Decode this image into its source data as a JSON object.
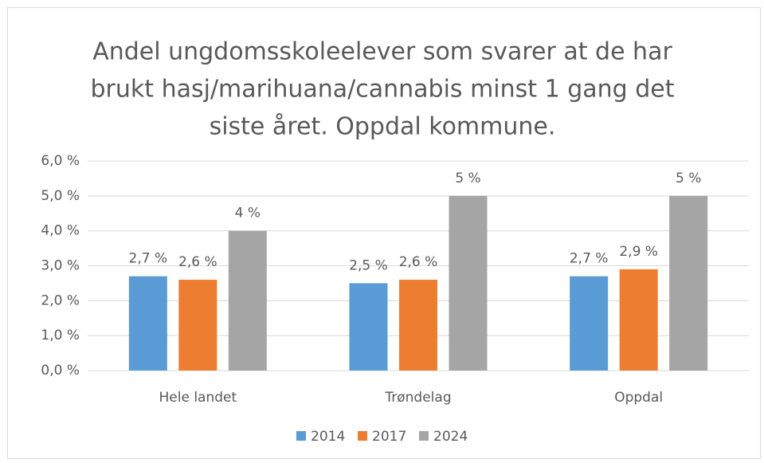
{
  "chart_data": {
    "type": "bar",
    "title": [
      "Andel ungdomsskoleelever som svarer at de har",
      "brukt hasj/marihuana/cannabis minst 1 gang det",
      "siste året. Oppdal kommune."
    ],
    "categories": [
      "Hele landet",
      "Trøndelag",
      "Oppdal"
    ],
    "series": [
      {
        "name": "2014",
        "color": "#5b9bd5",
        "values": [
          2.7,
          2.5,
          2.7
        ],
        "value_labels": [
          "2,7 %",
          "2,5 %",
          "2,7 %"
        ]
      },
      {
        "name": "2017",
        "color": "#ed7d31",
        "values": [
          2.6,
          2.6,
          2.9
        ],
        "value_labels": [
          "2,6 %",
          "2,6 %",
          "2,9 %"
        ]
      },
      {
        "name": "2024",
        "color": "#a5a5a5",
        "values": [
          4,
          5,
          5
        ],
        "value_labels": [
          "4 %",
          "5 %",
          "5 %"
        ]
      }
    ],
    "ylim": [
      0,
      6
    ],
    "yticks": [
      {
        "value": 0,
        "label": "0,0 %"
      },
      {
        "value": 1,
        "label": "1,0 %"
      },
      {
        "value": 2,
        "label": "2,0 %"
      },
      {
        "value": 3,
        "label": "3,0 %"
      },
      {
        "value": 4,
        "label": "4,0 %"
      },
      {
        "value": 5,
        "label": "5,0 %"
      },
      {
        "value": 6,
        "label": "6,0 %"
      }
    ],
    "grid": true,
    "legend": "bottom"
  }
}
